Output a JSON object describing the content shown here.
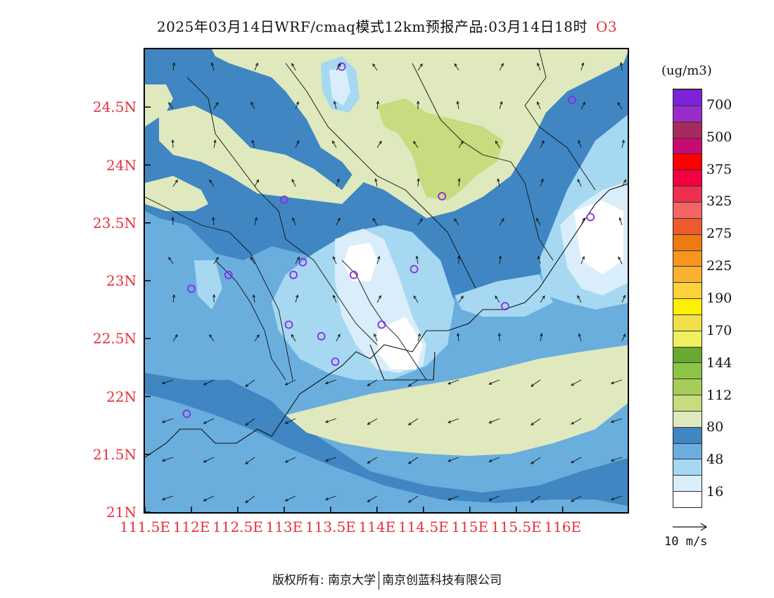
{
  "title": {
    "text": "2025年03月14日WRF/cmaq模式12km预报产品:03月14日18时",
    "species": "O3"
  },
  "axes": {
    "lat_labels": [
      "21N",
      "21.5N",
      "22N",
      "22.5N",
      "23N",
      "23.5N",
      "24N",
      "24.5N"
    ],
    "lon_labels": [
      "111.5E",
      "112E",
      "112.5E",
      "113E",
      "113.5E",
      "114E",
      "114.5E",
      "115E",
      "115.5E",
      "116E"
    ],
    "lon_range": [
      111.5,
      116.7
    ],
    "lat_range": [
      21,
      25
    ]
  },
  "legend": {
    "unit": "(ug/m3)",
    "labels": [
      "16",
      "48",
      "80",
      "112",
      "144",
      "170",
      "190",
      "225",
      "275",
      "325",
      "375",
      "500",
      "700"
    ],
    "colors": [
      "#ffffff",
      "#d9eefa",
      "#a6d8f2",
      "#6aaede",
      "#3f86c2",
      "#dfe9bd",
      "#c6dc7e",
      "#a8cc5a",
      "#8cc446",
      "#69a833",
      "#eef060",
      "#f2df4c",
      "#ffef00",
      "#fdd23a",
      "#f9b12f",
      "#f7951e",
      "#ef7a12",
      "#ec5a2e",
      "#f26466",
      "#ee2f4f",
      "#f20040",
      "#ff0000",
      "#c90a72",
      "#a82a5c",
      "#9a2dca",
      "#7d22d8"
    ]
  },
  "wind_reference": {
    "label": "10 m/s"
  },
  "footer": {
    "left": "版权所有: 南京大学",
    "right": "南京创蓝科技有限公司"
  },
  "stations": [
    [
      113.62,
      24.85
    ],
    [
      116.1,
      24.56
    ],
    [
      113.0,
      23.7
    ],
    [
      114.7,
      23.73
    ],
    [
      116.3,
      23.55
    ],
    [
      112.4,
      23.05
    ],
    [
      113.1,
      23.05
    ],
    [
      113.2,
      23.16
    ],
    [
      113.75,
      23.05
    ],
    [
      114.4,
      23.1
    ],
    [
      112.0,
      22.93
    ],
    [
      115.38,
      22.78
    ],
    [
      113.05,
      22.62
    ],
    [
      113.4,
      22.52
    ],
    [
      114.05,
      22.62
    ],
    [
      113.55,
      22.3
    ],
    [
      111.95,
      21.85
    ]
  ]
}
